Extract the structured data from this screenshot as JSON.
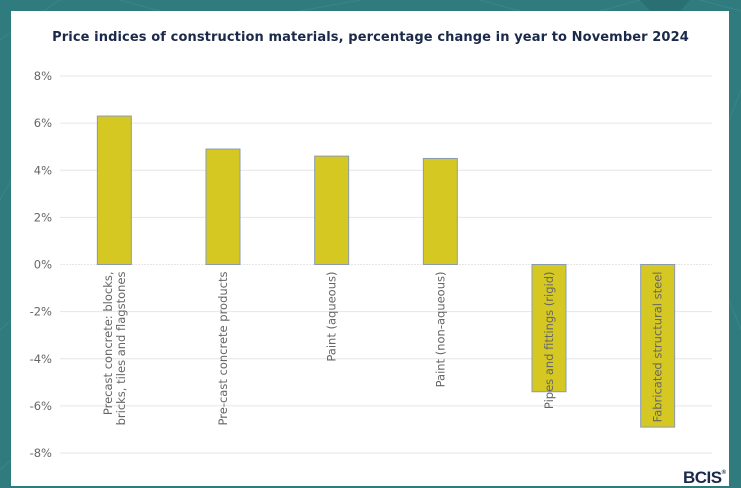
{
  "theme": {
    "background": "#2f7b7d",
    "panel": "#ffffff",
    "bar_fill": "#d6c823",
    "bar_stroke": "#8a9bb0",
    "grid": "#e6e6e6",
    "tick_text": "#666666",
    "title_text": "#1b2a4a"
  },
  "logo": {
    "text": "BCIS",
    "mark": "®"
  },
  "chart_data": {
    "type": "bar",
    "title": "Price indices of construction materials, percentage change in year to November 2024",
    "xlabel": "",
    "ylabel": "",
    "ylim": [
      -8,
      8
    ],
    "yticks": [
      8,
      6,
      4,
      2,
      0,
      -2,
      -4,
      -6,
      -8
    ],
    "ytick_labels": [
      "8%",
      "6%",
      "4%",
      "2%",
      "0%",
      "-2%",
      "-4%",
      "-6%",
      "-8%"
    ],
    "grid": true,
    "legend": "none",
    "categories": [
      [
        "Precast concrete: blocks,",
        "bricks, tiles and flagstones"
      ],
      [
        "Pre-cast concrete products"
      ],
      [
        "Paint (aqueous)"
      ],
      [
        "Paint (non-aqueous)"
      ],
      [
        "Pipes and fittings (rigid)"
      ],
      [
        "Fabricated structural steel"
      ]
    ],
    "values": [
      6.3,
      4.9,
      4.6,
      4.5,
      -5.4,
      -6.9
    ]
  }
}
